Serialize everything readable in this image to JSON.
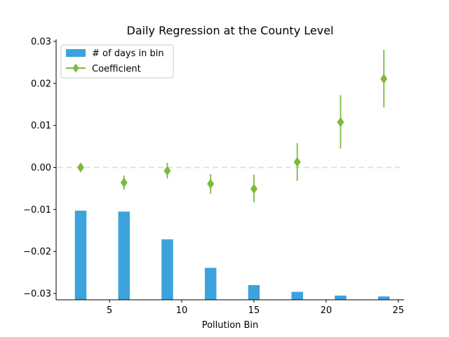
{
  "chart_data": {
    "type": "bar",
    "title": "Daily Regression at the County Level",
    "xlabel": "Pollution Bin",
    "ylabel": "",
    "xlim": [
      1.3,
      25.4
    ],
    "ylim": [
      -0.0315,
      0.0305
    ],
    "x_ticks": [
      5,
      10,
      15,
      20,
      25
    ],
    "x_tick_labels": [
      "5",
      "10",
      "15",
      "20",
      "25"
    ],
    "y_ticks": [
      0.03,
      0.02,
      0.01,
      0.0,
      -0.01,
      -0.02,
      -0.03
    ],
    "y_tick_labels": [
      "0.03",
      "0.02",
      "0.01",
      "0.00",
      "−0.01",
      "−0.02",
      "−0.03"
    ],
    "zero_reference_line": 0.0,
    "legend": {
      "position": "top-left",
      "entries": [
        "# of days in bin",
        "Coefficient"
      ]
    },
    "series": [
      {
        "name": "# of days in bin",
        "kind": "bar",
        "color": "#3ca3dc",
        "bar_width": 0.8,
        "x": [
          3,
          6,
          9,
          12,
          15,
          18,
          21,
          24
        ],
        "bar_top": [
          -0.0103,
          -0.0105,
          -0.0171,
          -0.0239,
          -0.028,
          -0.0296,
          -0.0305,
          -0.0307
        ]
      },
      {
        "name": "Coefficient",
        "kind": "errorbar",
        "color": "#7cb93e",
        "marker": "diamond",
        "x": [
          3,
          6,
          9,
          12,
          15,
          18,
          21,
          24
        ],
        "y": [
          0.0,
          -0.0036,
          -0.0008,
          -0.0039,
          -0.0051,
          0.0013,
          0.0108,
          0.0211
        ],
        "y_low": [
          0.0,
          -0.0053,
          -0.0026,
          -0.0063,
          -0.0083,
          -0.0032,
          0.0045,
          0.0143
        ],
        "y_high": [
          0.0,
          -0.0019,
          0.0011,
          -0.0016,
          -0.0017,
          0.0058,
          0.0172,
          0.028
        ]
      }
    ]
  }
}
